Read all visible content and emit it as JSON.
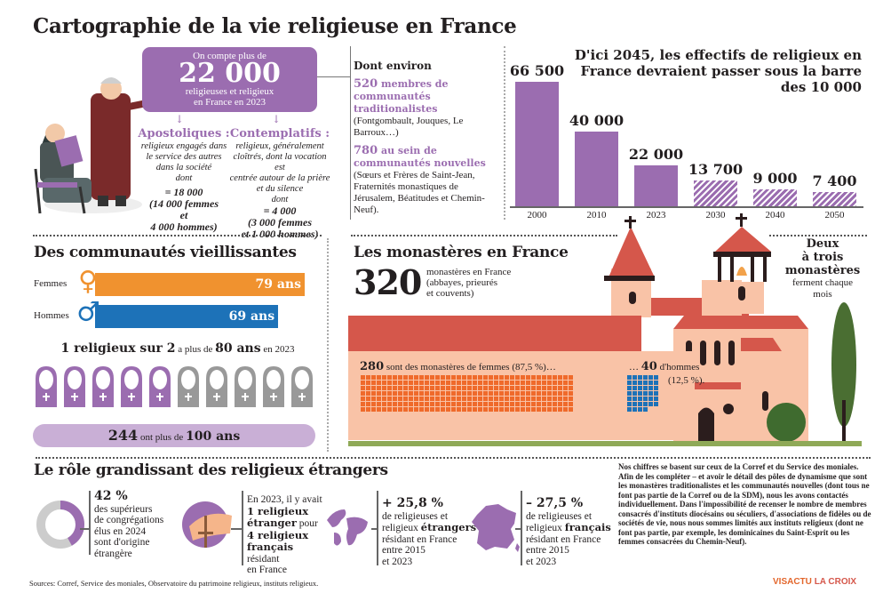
{
  "title": "Cartographie de la vie religieuse en France",
  "intro": {
    "line1": "On compte plus de",
    "big": "22 000",
    "line3": "religieuses et religieux",
    "line4": "en France en 2023"
  },
  "apostoliques": {
    "heading": "Apostoliques :",
    "desc": [
      "religieux engagés dans",
      "le service des autres",
      "dans la société",
      "dont"
    ],
    "sum": [
      "= 18 000",
      "(14 000 femmes",
      "et",
      "4 000 hommes)"
    ]
  },
  "contemplatifs": {
    "heading": "Contemplatifs :",
    "desc": [
      "religieux, généralement",
      "cloîtrés, dont la vocation est",
      "centrée autour de la prière",
      "et du silence",
      "dont"
    ],
    "sum": [
      "= 4 000",
      "(3 000 femmes",
      "et 1 000 hommes)"
    ]
  },
  "dont_environ": {
    "title": "Dont environ",
    "items": [
      {
        "num": "520",
        "label": " membres de communautés traditionalistes",
        "detail": " (Fontgombault, Jouques, Le Barroux…)"
      },
      {
        "num": "780",
        "label": " au sein de communautés nouvelles",
        "detail": " (Sœurs et Frères de Saint-Jean, Fraternités monastiques de Jérusalem, Béatitudes et Chemin-Neuf)."
      }
    ]
  },
  "chart_data": {
    "type": "bar",
    "title": "D'ici 2045, les effectifs de religieux en France devraient passer sous la barre des 10 000",
    "categories": [
      "2000",
      "2010",
      "2023",
      "2030",
      "2040",
      "2050"
    ],
    "values": [
      66500,
      40000,
      22000,
      13700,
      9000,
      7400
    ],
    "value_labels": [
      "66 500",
      "40 000",
      "22 000",
      "13 700",
      "9 000",
      "7 400"
    ],
    "projected": [
      false,
      false,
      false,
      true,
      true,
      true
    ],
    "xlabel": "",
    "ylabel": "",
    "ylim": [
      0,
      66500
    ],
    "grid": false,
    "colors": {
      "actual": "#9b6db0",
      "projected": "hatched #9b6db0"
    }
  },
  "aging": {
    "title": "Des communautés vieillissantes",
    "women_label": "Femmes",
    "women_age": "79 ans",
    "women_value": 79,
    "men_label": "Hommes",
    "men_age": "69 ans",
    "men_value": 69,
    "women_color": "#f0922f",
    "men_color": "#1d72b8",
    "one_in_two": {
      "a": "1 religieux sur 2",
      "b": " a plus de ",
      "c": "80 ans",
      "d": " en 2023"
    },
    "nuns_total": 10,
    "nuns_highlighted": 5,
    "centenarians": {
      "num": "244",
      "mid": " ont plus de ",
      "age": "100 ans"
    }
  },
  "monasteries": {
    "title": "Les monastères en France",
    "count": "320",
    "count_desc": [
      "monastères en France",
      "(abbayes, prieurés",
      "et couvents)"
    ],
    "women": {
      "num": "280",
      "text": " sont des monastères de femmes (87,5 %)…",
      "count": 280,
      "color": "#ef6a2b"
    },
    "men": {
      "pre": "… ",
      "num": "40",
      "text": " d'hommes",
      "pct": "(12,5 %).",
      "count": 40,
      "color": "#1d72b8"
    },
    "closing": {
      "l1": "Deux",
      "l2": "à trois",
      "l3": "monastères",
      "l4": "ferment chaque",
      "l5": "mois"
    }
  },
  "foreign": {
    "title": "Le rôle grandissant des religieux étrangers",
    "stat1": {
      "big": "42 %",
      "text": [
        "des supérieurs",
        "de congrégations",
        "élus en 2024",
        "sont d'origine",
        "étrangère"
      ],
      "value_pct": 42
    },
    "stat2": {
      "l1": "En 2023, il y avait",
      "b1": "1 religieux",
      "b2": "étranger",
      "t2": " pour",
      "b3": "4 religieux",
      "b4": "français",
      "l5": "résidant",
      "l6": "en France"
    },
    "stat3": {
      "big": "+ 25,8 %",
      "l1": "de religieuses et",
      "l2a": "religieux ",
      "l2b": "étrangers",
      "l3": "résidant en France",
      "l4": "entre 2015",
      "l5": "et 2023"
    },
    "stat4": {
      "big": "– 27,5 %",
      "l1": "de religieuses et",
      "l2a": "religieux ",
      "l2b": "français",
      "l3": "résidant en France",
      "l4": "entre 2015",
      "l5": "et 2023"
    }
  },
  "note": "Nos chiffres se basent sur ceux de la Corref et du Service des moniales. Afin de les compléter – et avoir le détail des pôles de dynamisme que sont les monastères traditionalistes et les communautés nouvelles (dont tous ne font pas partie de la Corref ou de la SDM), nous les avons contactés individuellement. Dans l'impossibilité de recenser le nombre de membres consacrés d'instituts diocésains ou séculiers, d'associations de fidèles ou de sociétés de vie, nous nous sommes limités aux instituts religieux (dont ne font pas partie, par exemple, les dominicaines du Saint-Esprit ou les femmes consacrées du Chemin-Neuf).",
  "sources": "Sources: Corref, Service des moniales, Observatoire du patrimoine religieux, instituts religieux.",
  "logo": {
    "a": "VISACTU",
    "b": "LA CROIX"
  }
}
